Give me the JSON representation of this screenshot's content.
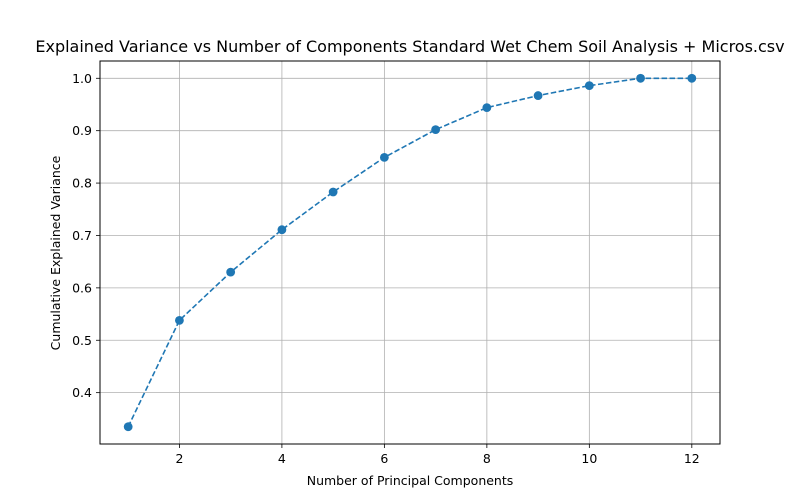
{
  "chart_data": {
    "type": "line",
    "title": "Explained Variance vs Number of Components Standard Wet Chem Soil Analysis  + Micros.csv",
    "xlabel": "Number of Principal Components",
    "ylabel": "Cumulative Explained Variance",
    "x": [
      1,
      2,
      3,
      4,
      5,
      6,
      7,
      8,
      9,
      10,
      11,
      12
    ],
    "series": [
      {
        "values": [
          0.335,
          0.538,
          0.63,
          0.711,
          0.783,
          0.849,
          0.902,
          0.944,
          0.967,
          0.986,
          1.0,
          1.0
        ],
        "color": "#1f77b4",
        "line_style": "dashed",
        "marker": "circle"
      }
    ],
    "xlim": [
      0.45,
      12.55
    ],
    "ylim": [
      0.302,
      1.033
    ],
    "xticks": [
      2,
      4,
      6,
      8,
      10,
      12
    ],
    "xtick_labels": [
      "2",
      "4",
      "6",
      "8",
      "10",
      "12"
    ],
    "yticks": [
      0.4,
      0.5,
      0.6,
      0.7,
      0.8,
      0.9,
      1.0
    ],
    "ytick_labels": [
      "0.4",
      "0.5",
      "0.6",
      "0.7",
      "0.8",
      "0.9",
      "1.0"
    ],
    "grid": true,
    "legend": "none"
  }
}
